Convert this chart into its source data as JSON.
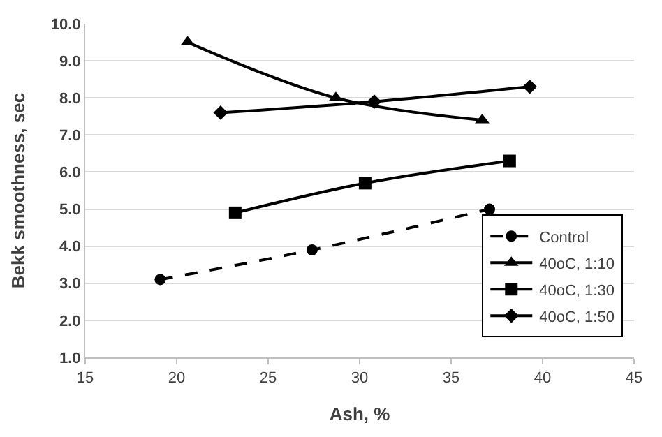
{
  "chart_data": {
    "type": "line",
    "xlabel": "Ash, %",
    "ylabel": "Bekk smoothness, sec",
    "xlim": [
      15,
      45
    ],
    "xticks": [
      15,
      20,
      25,
      30,
      35,
      40,
      45
    ],
    "ylim": [
      1.0,
      10.0
    ],
    "yticks": [
      {
        "value": 1,
        "label": "1.0"
      },
      {
        "value": 2,
        "label": "2.0"
      },
      {
        "value": 3,
        "label": "3.0"
      },
      {
        "value": 4,
        "label": "4.0"
      },
      {
        "value": 5,
        "label": "5.0"
      },
      {
        "value": 6,
        "label": "6.0"
      },
      {
        "value": 7,
        "label": "7.0"
      },
      {
        "value": 8,
        "label": "8.0"
      },
      {
        "value": 9,
        "label": "9.0"
      },
      {
        "value": 10,
        "label": "10.0"
      }
    ],
    "grid": "y",
    "legend": "bottom right",
    "series": [
      {
        "name": "Control",
        "color": "#000000",
        "marker": "circle",
        "line_style": "dashed",
        "x": [
          19.1,
          27.4,
          37.1
        ],
        "values": [
          3.1,
          3.9,
          5.0
        ]
      },
      {
        "name": "40oC, 1:10",
        "color": "#000000",
        "marker": "triangle",
        "line_style": "solid",
        "x": [
          20.6,
          28.7,
          36.7
        ],
        "values": [
          9.5,
          8.0,
          7.4
        ]
      },
      {
        "name": "40oC, 1:30",
        "color": "#000000",
        "marker": "square",
        "line_style": "solid",
        "x": [
          23.2,
          30.3,
          38.2
        ],
        "values": [
          4.9,
          5.7,
          6.3
        ]
      },
      {
        "name": "40oC, 1:50",
        "color": "#000000",
        "marker": "diamond",
        "line_style": "solid",
        "x": [
          22.4,
          30.8,
          39.3
        ],
        "values": [
          7.6,
          7.9,
          8.3
        ]
      }
    ]
  }
}
